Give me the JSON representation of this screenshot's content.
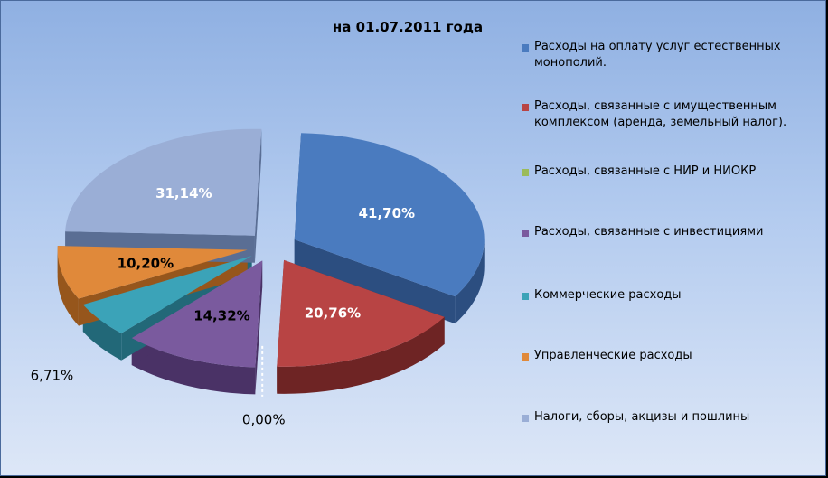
{
  "chart_data": {
    "type": "pie",
    "title": "на 01.07.2011 года",
    "legend_position": "right",
    "slices": [
      {
        "name": "Расходы на оплату услуг естественных монополий.",
        "value": 41.7,
        "label": "41,70%",
        "color": "#4a7bbf",
        "side_color": "#2c4e80"
      },
      {
        "name": "Расходы, связанные с имущественным комплексом (аренда, земельный налог).",
        "value": 20.76,
        "label": "20,76%",
        "color": "#b84444",
        "side_color": "#6e2424"
      },
      {
        "name": "Расходы, связанные с НИР и НИОКР",
        "value": 0.0,
        "label": "0,00%",
        "color": "#9bbb59",
        "side_color": "#5e7a30"
      },
      {
        "name": "Расходы, связанные с инвестициями",
        "value": 14.32,
        "label": "14,32%",
        "color": "#7a5a9e",
        "side_color": "#4a3266"
      },
      {
        "name": "Коммерческие расходы",
        "value": 6.71,
        "label": "6,71%",
        "color": "#3ba3b8",
        "side_color": "#226878"
      },
      {
        "name": "Управленческие расходы",
        "value": 10.2,
        "label": "10,20%",
        "color": "#e0893a",
        "side_color": "#96561c"
      },
      {
        "name": "Налоги, сборы, акцизы и пошлины",
        "value": 31.14,
        "label": "31,14%",
        "color": "#9aaed6",
        "side_color": "#5a6e94"
      }
    ]
  }
}
